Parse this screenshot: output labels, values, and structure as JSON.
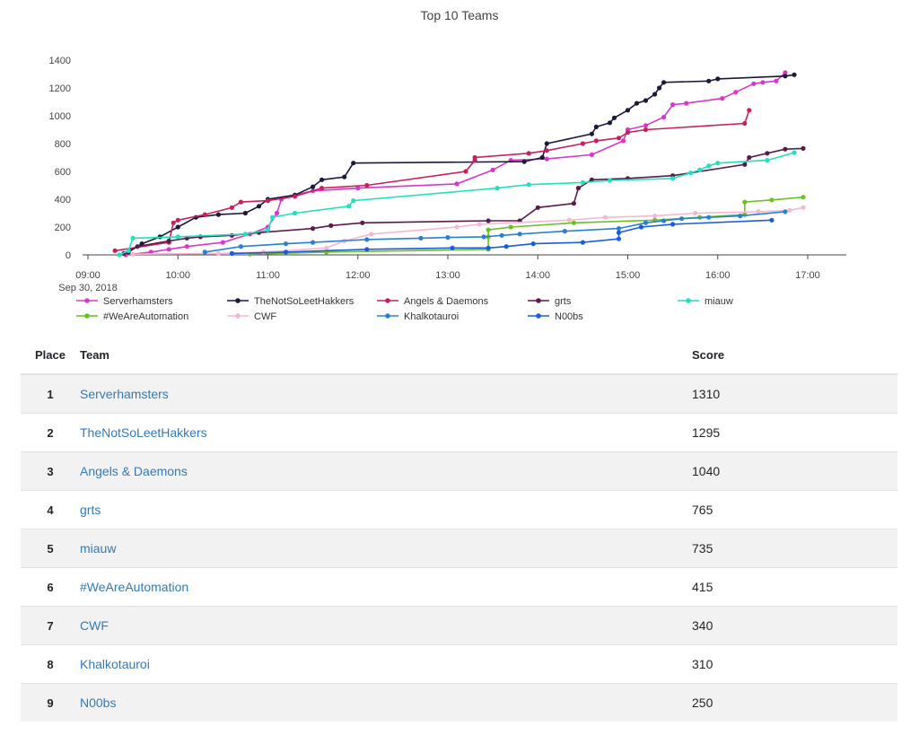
{
  "chart_data": {
    "type": "line",
    "title": "Top 10 Teams",
    "xlabel": "",
    "ylabel": "",
    "x_ticks": [
      "09:00",
      "10:00",
      "11:00",
      "12:00",
      "13:00",
      "14:00",
      "15:00",
      "16:00",
      "17:00"
    ],
    "x_date_label": "Sep 30, 2018",
    "xlim": [
      9.0,
      17.25
    ],
    "ylim": [
      0,
      1400
    ],
    "y_ticks": [
      0,
      200,
      400,
      600,
      800,
      1000,
      1200,
      1400
    ],
    "grid": false,
    "legend_position": "bottom",
    "series": [
      {
        "name": "Serverhamsters",
        "color": "#d838c8",
        "points": [
          [
            9.42,
            0
          ],
          [
            9.7,
            20
          ],
          [
            9.9,
            40
          ],
          [
            10.1,
            60
          ],
          [
            10.5,
            90
          ],
          [
            10.8,
            150
          ],
          [
            11.0,
            200
          ],
          [
            11.1,
            300
          ],
          [
            11.15,
            400
          ],
          [
            11.3,
            430
          ],
          [
            11.5,
            460
          ],
          [
            12.0,
            480
          ],
          [
            13.1,
            510
          ],
          [
            13.5,
            610
          ],
          [
            13.7,
            680
          ],
          [
            14.1,
            690
          ],
          [
            14.6,
            720
          ],
          [
            14.95,
            820
          ],
          [
            15.0,
            900
          ],
          [
            15.2,
            930
          ],
          [
            15.4,
            990
          ],
          [
            15.5,
            1080
          ],
          [
            15.65,
            1090
          ],
          [
            16.05,
            1125
          ],
          [
            16.2,
            1170
          ],
          [
            16.4,
            1230
          ],
          [
            16.5,
            1240
          ],
          [
            16.65,
            1250
          ],
          [
            16.75,
            1310
          ]
        ]
      },
      {
        "name": "TheNotSoLeetHakkers",
        "color": "#1a1a3a",
        "points": [
          [
            9.45,
            20
          ],
          [
            9.6,
            80
          ],
          [
            9.8,
            130
          ],
          [
            10.0,
            200
          ],
          [
            10.2,
            270
          ],
          [
            10.45,
            290
          ],
          [
            10.75,
            300
          ],
          [
            10.9,
            350
          ],
          [
            11.0,
            400
          ],
          [
            11.3,
            430
          ],
          [
            11.5,
            490
          ],
          [
            11.6,
            540
          ],
          [
            11.85,
            560
          ],
          [
            11.95,
            660
          ],
          [
            13.85,
            670
          ],
          [
            14.05,
            700
          ],
          [
            14.1,
            800
          ],
          [
            14.6,
            870
          ],
          [
            14.65,
            920
          ],
          [
            14.8,
            950
          ],
          [
            14.85,
            985
          ],
          [
            15.0,
            1040
          ],
          [
            15.1,
            1090
          ],
          [
            15.2,
            1110
          ],
          [
            15.3,
            1155
          ],
          [
            15.35,
            1200
          ],
          [
            15.4,
            1240
          ],
          [
            15.9,
            1250
          ],
          [
            16.0,
            1265
          ],
          [
            16.75,
            1285
          ],
          [
            16.85,
            1295
          ]
        ]
      },
      {
        "name": "Angels & Daemons",
        "color": "#c8205e",
        "points": [
          [
            9.3,
            30
          ],
          [
            9.9,
            90
          ],
          [
            9.95,
            230
          ],
          [
            10.0,
            250
          ],
          [
            10.3,
            290
          ],
          [
            10.6,
            340
          ],
          [
            10.7,
            380
          ],
          [
            11.0,
            390
          ],
          [
            11.3,
            420
          ],
          [
            11.6,
            480
          ],
          [
            12.1,
            500
          ],
          [
            13.2,
            600
          ],
          [
            13.3,
            680
          ],
          [
            13.3,
            700
          ],
          [
            13.9,
            730
          ],
          [
            14.1,
            750
          ],
          [
            14.5,
            800
          ],
          [
            14.65,
            820
          ],
          [
            14.9,
            840
          ],
          [
            15.0,
            880
          ],
          [
            15.2,
            900
          ],
          [
            16.3,
            945
          ],
          [
            16.35,
            1040
          ]
        ]
      },
      {
        "name": "grts",
        "color": "#5a1a4a",
        "points": [
          [
            9.4,
            10
          ],
          [
            9.55,
            60
          ],
          [
            9.9,
            100
          ],
          [
            10.1,
            120
          ],
          [
            10.25,
            130
          ],
          [
            10.6,
            140
          ],
          [
            10.9,
            160
          ],
          [
            11.5,
            190
          ],
          [
            11.7,
            210
          ],
          [
            12.05,
            230
          ],
          [
            13.45,
            245
          ],
          [
            13.8,
            245
          ],
          [
            14.0,
            340
          ],
          [
            14.4,
            370
          ],
          [
            14.45,
            480
          ],
          [
            14.6,
            540
          ],
          [
            15.0,
            550
          ],
          [
            15.5,
            570
          ],
          [
            16.3,
            650
          ],
          [
            16.35,
            700
          ],
          [
            16.55,
            730
          ],
          [
            16.75,
            760
          ],
          [
            16.95,
            765
          ]
        ]
      },
      {
        "name": "miauw",
        "color": "#20e0c0",
        "points": [
          [
            9.35,
            0
          ],
          [
            9.45,
            30
          ],
          [
            9.5,
            120
          ],
          [
            10.0,
            130
          ],
          [
            10.75,
            150
          ],
          [
            11.0,
            180
          ],
          [
            11.05,
            270
          ],
          [
            11.3,
            300
          ],
          [
            11.9,
            350
          ],
          [
            11.95,
            390
          ],
          [
            13.55,
            480
          ],
          [
            13.9,
            505
          ],
          [
            14.5,
            520
          ],
          [
            14.8,
            535
          ],
          [
            15.5,
            550
          ],
          [
            15.7,
            590
          ],
          [
            15.8,
            610
          ],
          [
            15.9,
            640
          ],
          [
            16.0,
            660
          ],
          [
            16.55,
            680
          ],
          [
            16.85,
            735
          ]
        ]
      },
      {
        "name": "#WeAreAutomation",
        "color": "#6cc020",
        "points": [
          [
            10.8,
            5
          ],
          [
            11.65,
            20
          ],
          [
            13.45,
            40
          ],
          [
            13.45,
            130
          ],
          [
            13.45,
            180
          ],
          [
            13.7,
            200
          ],
          [
            14.4,
            230
          ],
          [
            15.3,
            250
          ],
          [
            15.8,
            270
          ],
          [
            16.3,
            290
          ],
          [
            16.3,
            380
          ],
          [
            16.6,
            395
          ],
          [
            16.95,
            415
          ]
        ]
      },
      {
        "name": "CWF",
        "color": "#f4b8d2",
        "points": [
          [
            9.5,
            5
          ],
          [
            10.45,
            10
          ],
          [
            10.95,
            20
          ],
          [
            11.65,
            50
          ],
          [
            11.85,
            100
          ],
          [
            12.15,
            150
          ],
          [
            13.1,
            200
          ],
          [
            13.35,
            220
          ],
          [
            14.35,
            250
          ],
          [
            14.75,
            270
          ],
          [
            15.3,
            280
          ],
          [
            15.75,
            300
          ],
          [
            16.45,
            310
          ],
          [
            16.8,
            320
          ],
          [
            16.95,
            340
          ]
        ]
      },
      {
        "name": "Khalkotauroi",
        "color": "#2a80d0",
        "points": [
          [
            10.3,
            20
          ],
          [
            10.7,
            60
          ],
          [
            11.2,
            80
          ],
          [
            11.5,
            90
          ],
          [
            12.1,
            110
          ],
          [
            12.7,
            120
          ],
          [
            13.0,
            125
          ],
          [
            13.4,
            130
          ],
          [
            13.6,
            140
          ],
          [
            13.8,
            150
          ],
          [
            14.3,
            170
          ],
          [
            14.9,
            190
          ],
          [
            15.2,
            230
          ],
          [
            15.4,
            245
          ],
          [
            15.6,
            260
          ],
          [
            15.9,
            270
          ],
          [
            16.25,
            280
          ],
          [
            16.75,
            310
          ]
        ]
      },
      {
        "name": "N00bs",
        "color": "#1a5ce0",
        "points": [
          [
            10.6,
            10
          ],
          [
            11.2,
            20
          ],
          [
            12.1,
            40
          ],
          [
            13.05,
            50
          ],
          [
            13.45,
            50
          ],
          [
            13.65,
            60
          ],
          [
            13.95,
            80
          ],
          [
            14.5,
            90
          ],
          [
            14.9,
            115
          ],
          [
            14.9,
            160
          ],
          [
            15.15,
            200
          ],
          [
            15.5,
            220
          ],
          [
            16.6,
            250
          ]
        ]
      }
    ]
  },
  "table": {
    "headers": {
      "place": "Place",
      "team": "Team",
      "score": "Score"
    },
    "rows": [
      {
        "place": "1",
        "team": "Serverhamsters",
        "score": "1310"
      },
      {
        "place": "2",
        "team": "TheNotSoLeetHakkers",
        "score": "1295"
      },
      {
        "place": "3",
        "team": "Angels & Daemons",
        "score": "1040"
      },
      {
        "place": "4",
        "team": "grts",
        "score": "765"
      },
      {
        "place": "5",
        "team": "miauw",
        "score": "735"
      },
      {
        "place": "6",
        "team": "#WeAreAutomation",
        "score": "415"
      },
      {
        "place": "7",
        "team": "CWF",
        "score": "340"
      },
      {
        "place": "8",
        "team": "Khalkotauroi",
        "score": "310"
      },
      {
        "place": "9",
        "team": "N00bs",
        "score": "250"
      }
    ]
  }
}
